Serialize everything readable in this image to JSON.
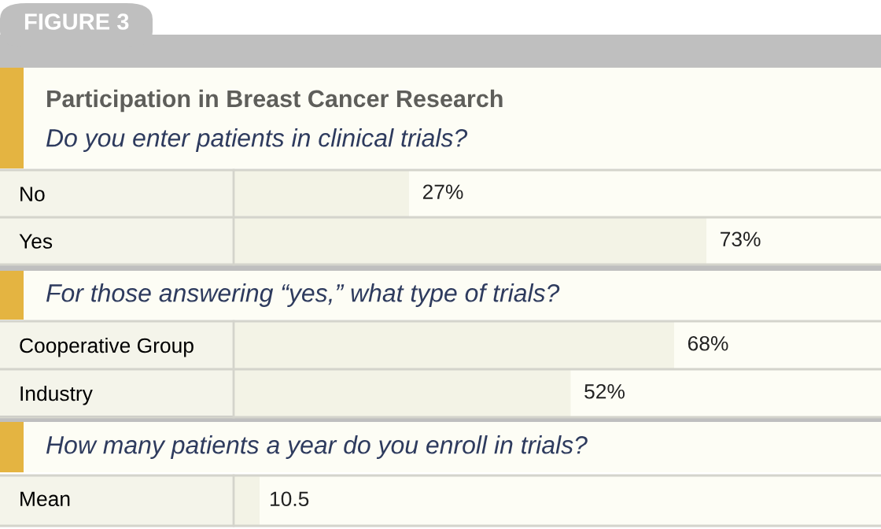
{
  "chart_data": [
    {
      "type": "bar",
      "orientation": "horizontal",
      "title": "Participation in Breast Cancer Research",
      "subtitle": "Do you enter patients in clinical trials?",
      "annotations": [
        "FIGURE 3"
      ],
      "categories": [
        "No",
        "Yes"
      ],
      "values": [
        27,
        73
      ],
      "value_labels": [
        "27%",
        "73%"
      ],
      "color": "#f3f3e6",
      "xlim": [
        0,
        100
      ],
      "tick_labels": "y",
      "grid": false,
      "legend": false
    },
    {
      "type": "bar",
      "orientation": "horizontal",
      "subtitle": "For those answering “yes,” what type of trials?",
      "categories": [
        "Cooperative Group",
        "Industry"
      ],
      "values": [
        68,
        52
      ],
      "value_labels": [
        "68%",
        "52%"
      ],
      "color": "#f3f3e6",
      "xlim": [
        0,
        100
      ],
      "tick_labels": "y",
      "grid": false,
      "legend": false
    },
    {
      "type": "other",
      "subtitle": "How many patients a year do you enroll in trials?",
      "categories": [
        "Mean"
      ],
      "values": [
        10.5
      ],
      "data_labels": true,
      "color": "#f3f3e6"
    }
  ]
}
